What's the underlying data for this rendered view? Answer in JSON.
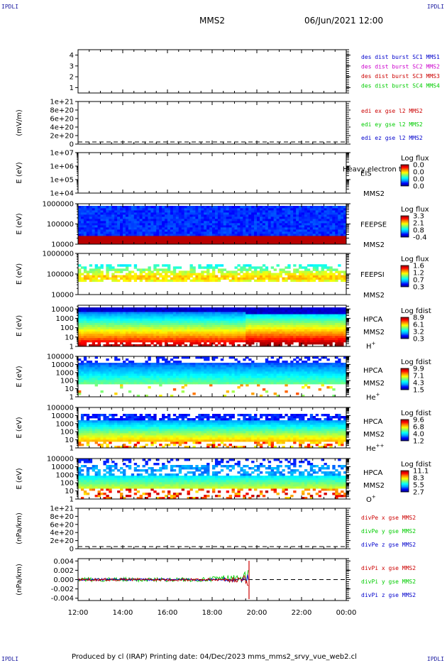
{
  "corners": {
    "tl": "IPDLI",
    "tr": "IPDLI",
    "bl": "IPDLI",
    "br": "IPDLI"
  },
  "header": {
    "spacecraft": "MMS2",
    "datetime": "06/Jun/2021 12:00"
  },
  "footer": {
    "text": "Produced by cl (IRAP)   Printing date: 04/Dec/2023   mms_mms2_srvy_vue_web2.cl"
  },
  "colors": {
    "red": "#cc0000",
    "green": "#00cc00",
    "blue": "#0000cc",
    "magenta": "#cc00cc"
  },
  "chart_data": [
    {
      "type": "line",
      "id": "burst",
      "yticks": [
        "1",
        "2",
        "3",
        "4"
      ],
      "ylim": [
        0.5,
        4.5
      ],
      "legend": [
        {
          "text": "des dist burst SC1 MMS1",
          "color": "#0000cc"
        },
        {
          "text": "des dist burst SC2 MMS2",
          "color": "#cc00cc"
        },
        {
          "text": "des dist burst SC3 MMS3",
          "color": "#cc0000"
        },
        {
          "text": "des dist burst SC4 MMS4",
          "color": "#00cc00"
        }
      ]
    },
    {
      "type": "line",
      "id": "edi",
      "ylabel": "(mV/m)",
      "yticks": [
        "0",
        "2e+20",
        "4e+20",
        "6e+20",
        "8e+20",
        "1e+21"
      ],
      "ylim": [
        0,
        1e+21
      ],
      "legend": [
        {
          "text": "edi ex gse l2 MMS2",
          "color": "#cc0000"
        },
        {
          "text": "edi ey gse l2 MMS2",
          "color": "#00cc00"
        },
        {
          "text": "edi ez gse l2 MMS2",
          "color": "#0000cc"
        }
      ]
    },
    {
      "type": "heatmap",
      "id": "eis",
      "ylabel": "E (eV)",
      "yticks": [
        "1e+04",
        "1e+05",
        "1e+06",
        "1e+07"
      ],
      "ylog": [
        4,
        7
      ],
      "labels": [
        "EIS",
        "MMS2"
      ],
      "overlay": "Heavy electron to",
      "colorbar": {
        "title": "Log flux",
        "ticks": [
          "0.0",
          "0.0",
          "0.0",
          "0.0"
        ]
      }
    },
    {
      "type": "heatmap",
      "id": "feepse",
      "ylabel": "E (eV)",
      "yticks": [
        "10000",
        "100000",
        "1000000"
      ],
      "ylog": [
        4,
        6
      ],
      "labels": [
        "FEEPSE",
        "MMS2"
      ],
      "colorbar": {
        "title": "Log flux",
        "ticks": [
          "3.3",
          "2.1",
          "0.8",
          "-0.4"
        ]
      }
    },
    {
      "type": "heatmap",
      "id": "feepsi",
      "ylabel": "E (eV)",
      "yticks": [
        "10000",
        "100000",
        "1000000"
      ],
      "ylog": [
        4,
        6
      ],
      "labels": [
        "FEEPSI",
        "MMS2"
      ],
      "colorbar": {
        "title": "Log flux",
        "ticks": [
          "1.6",
          "1.2",
          "0.7",
          "0.3"
        ]
      }
    },
    {
      "type": "heatmap",
      "id": "hpca_h",
      "ylabel": "E (eV)",
      "yticks": [
        "1",
        "10",
        "100",
        "1000",
        "10000"
      ],
      "ylog": [
        0,
        4.4
      ],
      "labels": [
        "HPCA",
        "MMS2"
      ],
      "species": "H",
      "charge": "+",
      "colorbar": {
        "title": "Log fdist",
        "ticks": [
          "8.9",
          "6.1",
          "3.2",
          "0.3"
        ]
      }
    },
    {
      "type": "heatmap",
      "id": "hpca_he",
      "ylabel": "E (eV)",
      "yticks": [
        "1",
        "10",
        "100",
        "1000",
        "10000",
        "100000"
      ],
      "ylog": [
        0,
        5
      ],
      "labels": [
        "HPCA",
        "MMS2"
      ],
      "species": "He",
      "charge": "+",
      "colorbar": {
        "title": "Log fdist",
        "ticks": [
          "9.9",
          "7.1",
          "4.3",
          "1.5"
        ]
      }
    },
    {
      "type": "heatmap",
      "id": "hpca_hepp",
      "ylabel": "E (eV)",
      "yticks": [
        "1",
        "10",
        "100",
        "1000",
        "10000",
        "100000"
      ],
      "ylog": [
        0,
        5
      ],
      "labels": [
        "HPCA",
        "MMS2"
      ],
      "species": "He",
      "charge": "++",
      "colorbar": {
        "title": "Log fdist",
        "ticks": [
          "9.6",
          "6.8",
          "4.0",
          "1.2"
        ]
      }
    },
    {
      "type": "heatmap",
      "id": "hpca_o",
      "ylabel": "E (eV)",
      "yticks": [
        "1",
        "10",
        "100",
        "1000",
        "10000",
        "100000"
      ],
      "ylog": [
        0,
        5
      ],
      "labels": [
        "HPCA",
        "MMS2"
      ],
      "species": "O",
      "charge": "+",
      "colorbar": {
        "title": "Log fdist",
        "ticks": [
          "11.1",
          "8.3",
          "5.5",
          "2.7"
        ]
      }
    },
    {
      "type": "line",
      "id": "divpe",
      "ylabel": "(nPa/km)",
      "yticks": [
        "0",
        "2e+20",
        "4e+20",
        "6e+20",
        "8e+20",
        "1e+21"
      ],
      "ylim": [
        0,
        1e+21
      ],
      "legend": [
        {
          "text": "divPe x gse MMS2",
          "color": "#cc0000"
        },
        {
          "text": "divPe y gse MMS2",
          "color": "#00cc00"
        },
        {
          "text": "divPe z gse MMS2",
          "color": "#0000cc"
        }
      ]
    },
    {
      "type": "line",
      "id": "divpi",
      "ylabel": "(nPa/km)",
      "yticks": [
        "-0.004",
        "-0.002",
        "0.000",
        "0.002",
        "0.004"
      ],
      "ylim": [
        -0.0045,
        0.0045
      ],
      "data_end_hour": 19.65,
      "legend": [
        {
          "text": "divPi x gse MMS2",
          "color": "#cc0000"
        },
        {
          "text": "divPi y gse MMS2",
          "color": "#00cc00"
        },
        {
          "text": "divPi z gse MMS2",
          "color": "#0000cc"
        }
      ]
    }
  ],
  "xaxis": {
    "ticks": [
      "12:00",
      "14:00",
      "16:00",
      "18:00",
      "20:00",
      "22:00",
      "00:00"
    ],
    "range_hours": [
      12,
      24
    ]
  }
}
